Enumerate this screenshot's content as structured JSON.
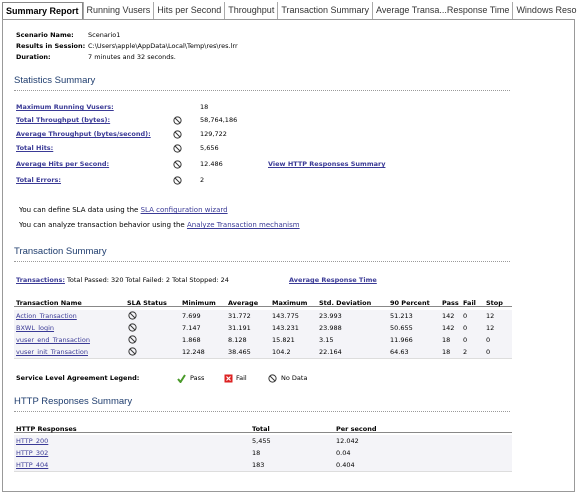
{
  "tabs": [
    "Summary Report",
    "Running Vusers",
    "Hits per Second",
    "Throughput",
    "Transaction Summary",
    "Average Transa...Response Time",
    "Windows Resources"
  ],
  "scenario": {
    "rows": [
      [
        "Scenario Name:",
        "Scenario1"
      ],
      [
        "Results in Session:",
        "C:\\Users\\apple\\AppData\\Local\\Temp\\res\\res.lrr"
      ],
      [
        "Duration:",
        "7 minutes and 32 seconds."
      ]
    ]
  },
  "statistics": {
    "title": "Statistics Summary",
    "rows": [
      [
        "Maximum Running Vusers:",
        "18"
      ],
      [
        "Total Throughput (bytes):",
        "58,764,186"
      ],
      [
        "Average Throughput (bytes/second):",
        "129,722"
      ],
      [
        "Total Hits:",
        "5,656"
      ],
      [
        "Average Hits per Second:",
        "12.486"
      ],
      [
        "Total Errors:",
        "2"
      ]
    ],
    "link": "View HTTP Responses Summary"
  },
  "sla_notes": [
    {
      "text": "You can define SLA data using the ",
      "link": "SLA configuration wizard"
    },
    {
      "text": "You can analyze transaction behavior using the ",
      "link": "Analyze Transaction mechanism"
    }
  ],
  "transaction_summary": {
    "title": "Transaction Summary",
    "transactions_link": "Transactions:",
    "totals": "Total Passed: 320 Total Failed: 2 Total Stopped: 24",
    "response_link": "Average Response Time",
    "table": {
      "header": [
        "Transaction Name",
        "SLA Status",
        "Minimum",
        "Average",
        "Maximum",
        "Std. Deviation",
        "90 Percent",
        "Pass",
        "Fail",
        "Stop"
      ],
      "rows": [
        [
          "Action_Transaction",
          "7.699",
          "31.772",
          "143.775",
          "23.993",
          "51.213",
          "142",
          "0",
          "12"
        ],
        [
          "BXWL_login",
          "7.147",
          "31.191",
          "143.231",
          "23.988",
          "50.655",
          "142",
          "0",
          "12"
        ],
        [
          "vuser_end_Transaction",
          "1.868",
          "8.128",
          "15.821",
          "3.15",
          "11.966",
          "18",
          "0",
          "0"
        ],
        [
          "vuser_init_Transaction",
          "12.248",
          "38.465",
          "104.2",
          "22.164",
          "64.63",
          "18",
          "2",
          "0"
        ]
      ]
    },
    "legend": {
      "title": "Service Level Agreement Legend:",
      "items": [
        "Pass",
        "Fail",
        "No Data"
      ]
    }
  },
  "http_summary": {
    "title": "HTTP Responses Summary",
    "table": {
      "header": [
        "HTTP Responses",
        "Total",
        "Per second"
      ],
      "rows": [
        [
          "HTTP_200",
          "5,455",
          "12.042"
        ],
        [
          "HTTP_302",
          "18",
          "0.04"
        ],
        [
          "HTTP_404",
          "183",
          "0.404"
        ]
      ]
    }
  }
}
